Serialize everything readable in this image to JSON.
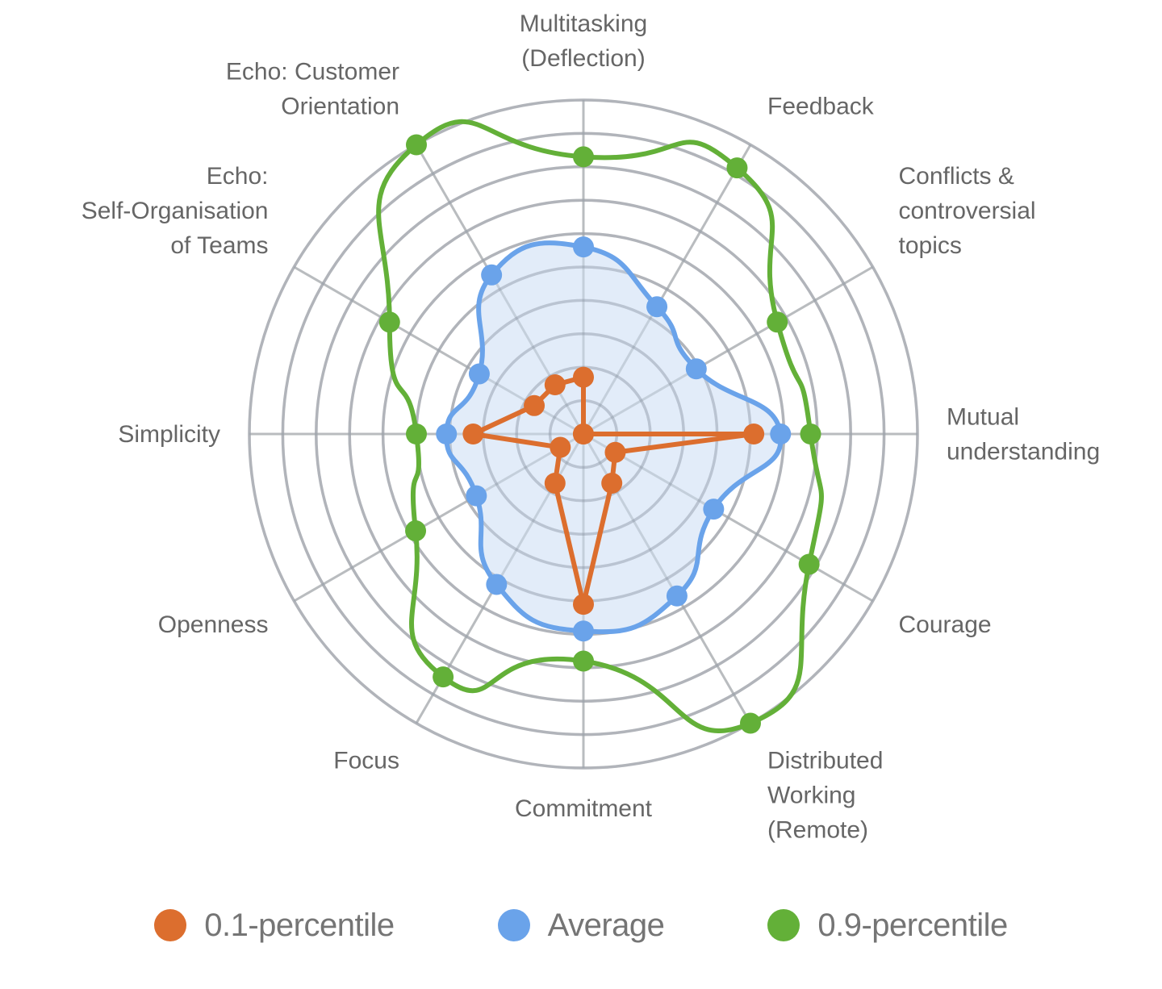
{
  "chart_data": {
    "type": "radar",
    "title": "",
    "categories": [
      "Multitasking (Deflection)",
      "Feedback",
      "Conflicts & controversial topics",
      "Mutual understanding",
      "Courage",
      "Distributed Working (Remote)",
      "Commitment",
      "Focus",
      "Openness",
      "Simplicity",
      "Echo: Self-Organisation of Teams",
      "Echo: Customer Orientation"
    ],
    "category_label_lines": [
      [
        "Multitasking",
        "(Deflection)"
      ],
      [
        "Feedback"
      ],
      [
        "Conflicts &",
        "controversial",
        "topics"
      ],
      [
        "Mutual",
        "understanding"
      ],
      [
        "Courage"
      ],
      [
        "Distributed",
        "Working",
        "(Remote)"
      ],
      [
        "Commitment"
      ],
      [
        "Focus"
      ],
      [
        "Openness"
      ],
      [
        "Simplicity"
      ],
      [
        "Echo:",
        "Self-Organisation",
        "of Teams"
      ],
      [
        "Echo: Customer",
        "Orientation"
      ]
    ],
    "rlim": [
      0,
      10
    ],
    "grid_rings": 10,
    "grid": true,
    "legend_position": "bottom",
    "series": [
      {
        "name": "0.1-percentile",
        "color": "#DC6E2E",
        "fill": false,
        "smooth": false,
        "values": [
          1.7,
          0,
          0,
          5.1,
          1.1,
          1.7,
          5.1,
          1.7,
          0.8,
          3.3,
          1.7,
          1.7
        ]
      },
      {
        "name": "Average",
        "color": "#6AA3EA",
        "fill": true,
        "fill_color": "#DFEAF8",
        "smooth": true,
        "values": [
          5.6,
          4.4,
          3.9,
          5.9,
          4.5,
          5.6,
          5.9,
          5.2,
          3.7,
          4.1,
          3.6,
          5.5
        ]
      },
      {
        "name": "0.9-percentile",
        "color": "#63B038",
        "fill": false,
        "smooth": true,
        "values": [
          8.3,
          9.2,
          6.7,
          6.8,
          7.8,
          10.0,
          6.8,
          8.4,
          5.8,
          5.0,
          6.7,
          10.0
        ]
      }
    ]
  },
  "legend": {
    "items": [
      {
        "label": "0.1-percentile",
        "color": "#DC6E2E"
      },
      {
        "label": "Average",
        "color": "#6AA3EA"
      },
      {
        "label": "0.9-percentile",
        "color": "#63B038"
      }
    ]
  }
}
